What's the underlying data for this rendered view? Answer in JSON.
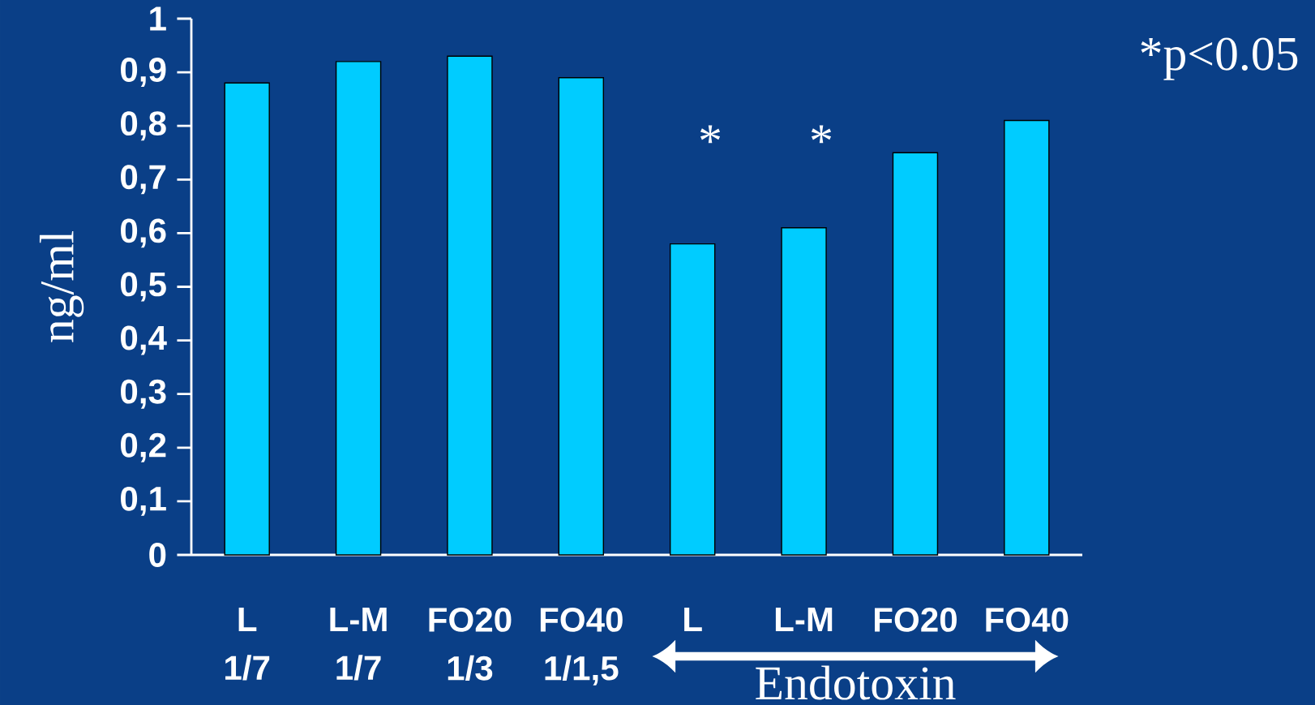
{
  "chart_data": {
    "type": "bar",
    "ylabel": "ng/ml",
    "categories": [
      "L 1/7",
      "L-M 1/7",
      "FO20 1/3",
      "FO40 1/1,5",
      "L",
      "L-M",
      "FO20",
      "FO40"
    ],
    "values": [
      0.88,
      0.92,
      0.93,
      0.89,
      0.58,
      0.61,
      0.75,
      0.81
    ],
    "color": "#00ccff",
    "ylim": [
      0,
      1
    ],
    "yticks": [
      {
        "value": 0,
        "label": "0"
      },
      {
        "value": 0.1,
        "label": "0,1"
      },
      {
        "value": 0.2,
        "label": "0,2"
      },
      {
        "value": 0.3,
        "label": "0,3"
      },
      {
        "value": 0.4,
        "label": "0,4"
      },
      {
        "value": 0.5,
        "label": "0,5"
      },
      {
        "value": 0.6,
        "label": "0,6"
      },
      {
        "value": 0.7,
        "label": "0,7"
      },
      {
        "value": 0.8,
        "label": "0,8"
      },
      {
        "value": 0.9,
        "label": "0,9"
      },
      {
        "value": 1,
        "label": "1"
      }
    ],
    "annotations": [
      "*p<0.05",
      "*",
      "*",
      "Endotoxin"
    ]
  }
}
